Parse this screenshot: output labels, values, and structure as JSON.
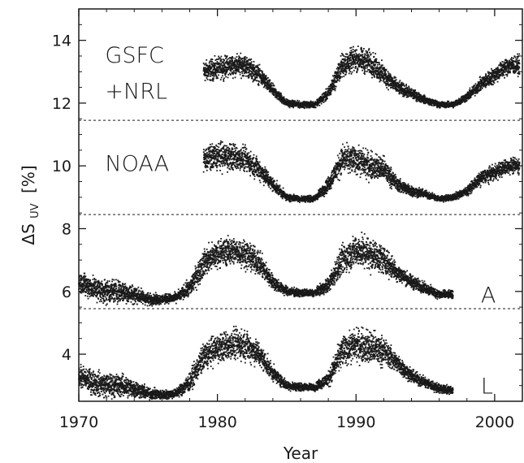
{
  "chart_data": {
    "type": "scatter",
    "xlabel": "Year",
    "ylabel_main": "ΔS",
    "ylabel_sub": "UV",
    "ylabel_unit": "[%]",
    "xlim": [
      1970,
      2002
    ],
    "ylim": [
      2.5,
      15
    ],
    "x_ticks": [
      1970,
      1980,
      1990,
      2000
    ],
    "y_ticks": [
      4,
      6,
      8,
      10,
      12,
      14
    ],
    "dashed_separators": [
      5.45,
      8.45,
      11.45
    ],
    "series_labels": [
      {
        "id": "gsfc",
        "lines": [
          "GSFC",
          "+NRL"
        ],
        "x": 1971.9,
        "y": [
          13.55,
          12.4
        ]
      },
      {
        "id": "noaa",
        "lines": [
          "NOAA"
        ],
        "x": 1971.9,
        "y": [
          10.1
        ]
      },
      {
        "id": "a",
        "lines": [
          "A"
        ],
        "x": 1999.0,
        "y": [
          5.9
        ]
      },
      {
        "id": "l",
        "lines": [
          "L"
        ],
        "x": 1999.0,
        "y": [
          3.0
        ]
      }
    ],
    "series": [
      {
        "id": "gsfc",
        "x": [
          1979.0,
          1980.0,
          1981.0,
          1982.0,
          1983.0,
          1984.0,
          1985.0,
          1986.0,
          1987.0,
          1988.0,
          1989.0,
          1990.0,
          1991.0,
          1992.0,
          1993.0,
          1994.0,
          1995.0,
          1996.0,
          1997.0,
          1998.0,
          1999.0,
          2000.0,
          2001.0,
          2001.8
        ],
        "y": [
          13.0,
          13.1,
          13.2,
          13.2,
          12.9,
          12.4,
          12.0,
          11.95,
          11.95,
          12.3,
          13.2,
          13.4,
          13.3,
          12.9,
          12.5,
          12.3,
          12.1,
          11.95,
          11.95,
          12.2,
          12.6,
          12.9,
          13.2,
          13.2
        ],
        "scatter": [
          0.35,
          0.35,
          0.35,
          0.35,
          0.3,
          0.2,
          0.12,
          0.1,
          0.1,
          0.2,
          0.4,
          0.4,
          0.4,
          0.35,
          0.22,
          0.18,
          0.12,
          0.1,
          0.1,
          0.15,
          0.22,
          0.28,
          0.3,
          0.3
        ]
      },
      {
        "id": "noaa",
        "x": [
          1979.0,
          1980.0,
          1981.0,
          1982.0,
          1983.0,
          1984.0,
          1985.0,
          1986.0,
          1987.0,
          1988.0,
          1989.0,
          1990.0,
          1991.0,
          1992.0,
          1993.0,
          1994.0,
          1995.0,
          1996.0,
          1997.0,
          1998.0,
          1999.0,
          2000.0,
          2001.0,
          2001.8
        ],
        "y": [
          10.2,
          10.3,
          10.3,
          10.2,
          9.9,
          9.4,
          9.0,
          8.95,
          8.95,
          9.4,
          10.2,
          10.2,
          10.0,
          9.9,
          9.4,
          9.2,
          9.1,
          8.95,
          9.0,
          9.2,
          9.6,
          9.8,
          10.0,
          10.0
        ],
        "scatter": [
          0.4,
          0.45,
          0.45,
          0.4,
          0.35,
          0.22,
          0.12,
          0.1,
          0.1,
          0.25,
          0.45,
          0.45,
          0.45,
          0.4,
          0.22,
          0.18,
          0.12,
          0.1,
          0.1,
          0.15,
          0.22,
          0.25,
          0.25,
          0.25
        ]
      },
      {
        "id": "a",
        "x": [
          1970.0,
          1971.0,
          1972.0,
          1973.0,
          1974.0,
          1975.0,
          1976.0,
          1977.0,
          1978.0,
          1979.0,
          1980.0,
          1981.0,
          1982.0,
          1983.0,
          1984.0,
          1985.0,
          1986.0,
          1987.0,
          1988.0,
          1989.0,
          1990.0,
          1991.0,
          1992.0,
          1993.0,
          1994.0,
          1995.0,
          1996.0,
          1997.0
        ],
        "y": [
          6.3,
          6.1,
          6.0,
          6.0,
          5.9,
          5.75,
          5.75,
          5.8,
          6.1,
          6.9,
          7.2,
          7.3,
          7.2,
          6.9,
          6.3,
          6.0,
          5.95,
          5.95,
          6.2,
          7.0,
          7.3,
          7.2,
          7.0,
          6.6,
          6.3,
          6.1,
          5.9,
          5.9
        ],
        "scatter": [
          0.35,
          0.4,
          0.4,
          0.38,
          0.3,
          0.2,
          0.15,
          0.15,
          0.3,
          0.45,
          0.45,
          0.45,
          0.45,
          0.4,
          0.25,
          0.15,
          0.12,
          0.12,
          0.25,
          0.5,
          0.5,
          0.55,
          0.45,
          0.3,
          0.22,
          0.18,
          0.15,
          0.12
        ]
      },
      {
        "id": "l",
        "x": [
          1970.0,
          1971.0,
          1972.0,
          1973.0,
          1974.0,
          1975.0,
          1976.0,
          1977.0,
          1978.0,
          1979.0,
          1980.0,
          1981.0,
          1982.0,
          1983.0,
          1984.0,
          1985.0,
          1986.0,
          1987.0,
          1988.0,
          1989.0,
          1990.0,
          1991.0,
          1992.0,
          1993.0,
          1994.0,
          1995.0,
          1996.0,
          1997.0
        ],
        "y": [
          3.3,
          3.1,
          3.0,
          3.0,
          2.9,
          2.75,
          2.7,
          2.75,
          3.1,
          3.9,
          4.2,
          4.3,
          4.3,
          4.0,
          3.4,
          3.0,
          2.95,
          2.95,
          3.2,
          4.1,
          4.3,
          4.2,
          4.1,
          3.7,
          3.3,
          3.1,
          2.9,
          2.85
        ],
        "scatter": [
          0.35,
          0.4,
          0.4,
          0.38,
          0.3,
          0.2,
          0.15,
          0.15,
          0.3,
          0.45,
          0.45,
          0.5,
          0.5,
          0.4,
          0.25,
          0.15,
          0.12,
          0.12,
          0.25,
          0.5,
          0.5,
          0.6,
          0.45,
          0.3,
          0.22,
          0.18,
          0.15,
          0.12
        ]
      }
    ]
  }
}
